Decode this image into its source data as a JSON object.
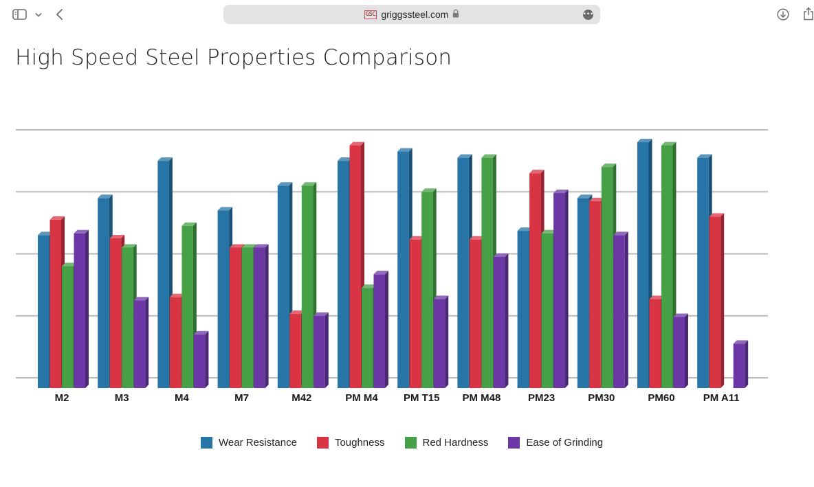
{
  "browser": {
    "url": "griggssteel.com",
    "favicon_text": "GSC"
  },
  "page": {
    "title": "High Speed Steel Properties Comparison"
  },
  "colors": {
    "wear": "#2774a6",
    "tough": "#d83444",
    "red_hardness": "#45a046",
    "grinding": "#6a37a4",
    "gridline": "#b9b9b9"
  },
  "chart_data": {
    "type": "bar",
    "title": "High Speed Steel Properties Comparison",
    "xlabel": "",
    "ylabel": "",
    "grid": true,
    "legend_placement": "bottom",
    "ylim": [
      0,
      4
    ],
    "categories": [
      "M2",
      "M3",
      "M4",
      "M7",
      "M42",
      "PM M4",
      "PM T15",
      "PM M48",
      "PM23",
      "PM30",
      "PM60",
      "PM A11"
    ],
    "series": [
      {
        "name": "Wear Resistance",
        "values": [
          2.3,
          2.9,
          3.5,
          2.7,
          3.1,
          3.5,
          3.65,
          3.55,
          2.37,
          2.9,
          3.8,
          3.55
        ]
      },
      {
        "name": "Toughness",
        "values": [
          2.55,
          2.25,
          1.3,
          2.1,
          1.03,
          3.75,
          2.23,
          2.23,
          3.3,
          2.85,
          1.27,
          2.6
        ]
      },
      {
        "name": "Red Hardness",
        "values": [
          1.8,
          2.1,
          2.45,
          2.1,
          3.1,
          1.45,
          3.0,
          3.55,
          2.33,
          3.4,
          3.75,
          null
        ]
      },
      {
        "name": "Ease of Grinding",
        "values": [
          2.33,
          1.25,
          0.7,
          2.1,
          1.0,
          1.67,
          1.27,
          1.95,
          2.98,
          2.3,
          0.98,
          0.55
        ]
      }
    ]
  },
  "legend": {
    "items": [
      {
        "label": "Wear Resistance"
      },
      {
        "label": "Toughness"
      },
      {
        "label": "Red Hardness"
      },
      {
        "label": "Ease of Grinding"
      }
    ]
  }
}
